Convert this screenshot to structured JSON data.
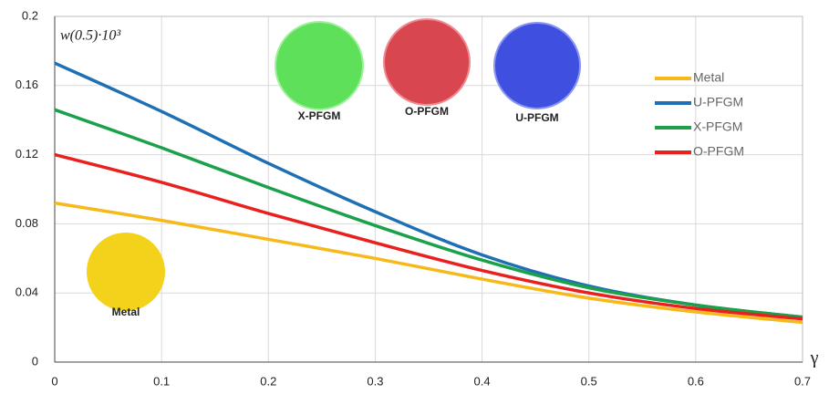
{
  "chart_data": {
    "type": "line",
    "ylabel": "w(0.5)·10³",
    "xlabel": "γ",
    "x": [
      0,
      0.1,
      0.2,
      0.3,
      0.4,
      0.5,
      0.6,
      0.7
    ],
    "series": [
      {
        "name": "Metal",
        "color": "#f6b919",
        "values": [
          0.092,
          0.082,
          0.071,
          0.06,
          0.048,
          0.037,
          0.029,
          0.023
        ]
      },
      {
        "name": "U-PFGM",
        "color": "#1f6fb5",
        "values": [
          0.173,
          0.145,
          0.115,
          0.087,
          0.062,
          0.044,
          0.033,
          0.026
        ]
      },
      {
        "name": "X-PFGM",
        "color": "#1aa14a",
        "values": [
          0.146,
          0.124,
          0.101,
          0.079,
          0.059,
          0.043,
          0.033,
          0.026
        ]
      },
      {
        "name": "O-PFGM",
        "color": "#e8201e",
        "values": [
          0.12,
          0.104,
          0.086,
          0.069,
          0.053,
          0.04,
          0.031,
          0.025
        ]
      }
    ],
    "xlim": [
      0,
      0.7
    ],
    "xticks": [
      0,
      0.1,
      0.2,
      0.3,
      0.4,
      0.5,
      0.6,
      0.7
    ],
    "ylim": [
      0,
      0.2
    ],
    "yticks": [
      0,
      0.04,
      0.08,
      0.12,
      0.16,
      0.2
    ],
    "grid": true,
    "legend": "upper right",
    "annotations": [
      "X-PFGM",
      "O-PFGM",
      "U-PFGM",
      "Metal"
    ]
  }
}
